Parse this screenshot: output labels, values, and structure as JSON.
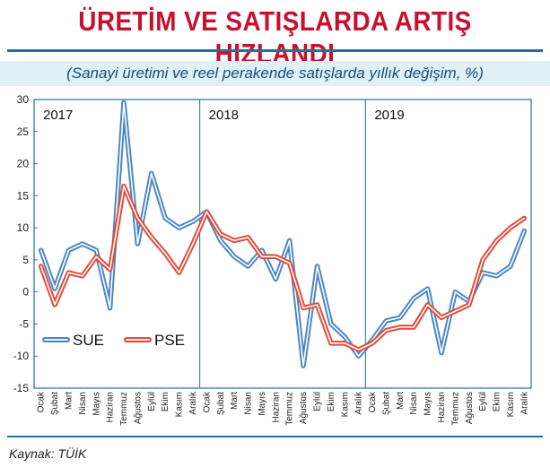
{
  "chart_data": {
    "type": "line",
    "title": "ÜRETİM VE SATIŞLARDA ARTIŞ HIZLANDI",
    "subtitle": "(Sanayi üretimi ve reel perakende satışlarda yıllık değişim, %)",
    "source": "Kaynak: TÜİK",
    "ylim": [
      -15,
      30
    ],
    "yticks": [
      "30",
      "25",
      "20",
      "15",
      "10",
      "5",
      "0",
      "-5",
      "-10",
      "-15"
    ],
    "ytick_values": [
      30,
      25,
      20,
      15,
      10,
      5,
      0,
      -5,
      -10,
      -15
    ],
    "years": [
      "2017",
      "2018",
      "2019"
    ],
    "categories": [
      "Ocak",
      "Şubat",
      "Mart",
      "Nisan",
      "Mayıs",
      "Haziran",
      "Temmuz",
      "Ağustos",
      "Eylül",
      "Ekim",
      "Kasım",
      "Aralık",
      "Ocak",
      "Şubat",
      "Mart",
      "Nisan",
      "Mayıs",
      "Haziran",
      "Temmuz",
      "Ağustos",
      "Eylül",
      "Ekim",
      "Kasım",
      "Aralık",
      "Ocak",
      "Şubat",
      "Mart",
      "Nisan",
      "Mayıs",
      "Haziran",
      "Temmuz",
      "Ağustos",
      "Eylül",
      "Ekim",
      "Kasım",
      "Aralık"
    ],
    "series": [
      {
        "name": "SUE",
        "color": "#4a86c5",
        "values": [
          6.5,
          0.5,
          6.5,
          7.5,
          6.5,
          -2.5,
          29.5,
          7.5,
          18.5,
          11.5,
          10,
          11,
          12.5,
          8,
          5.5,
          4,
          6.5,
          2,
          8,
          -11.5,
          4,
          -5,
          -7,
          -10,
          -7.5,
          -4.5,
          -4,
          -1,
          0.5,
          -9.5,
          0,
          -1.5,
          3,
          2.5,
          4,
          9.5
        ]
      },
      {
        "name": "PSE",
        "color": "#e04a3a",
        "values": [
          4,
          -2,
          3,
          2.5,
          5.5,
          3.5,
          16.5,
          11.5,
          8.5,
          6,
          3,
          7.5,
          12.5,
          9,
          8,
          8.5,
          5.5,
          5.5,
          4.5,
          -2.5,
          -2,
          -8,
          -8,
          -9,
          -8,
          -6,
          -5.5,
          -5.5,
          -2,
          -4,
          -3,
          -2,
          5,
          8,
          10,
          11.5
        ]
      }
    ],
    "legend": [
      "SUE",
      "PSE"
    ],
    "xlabel": "",
    "ylabel": ""
  }
}
